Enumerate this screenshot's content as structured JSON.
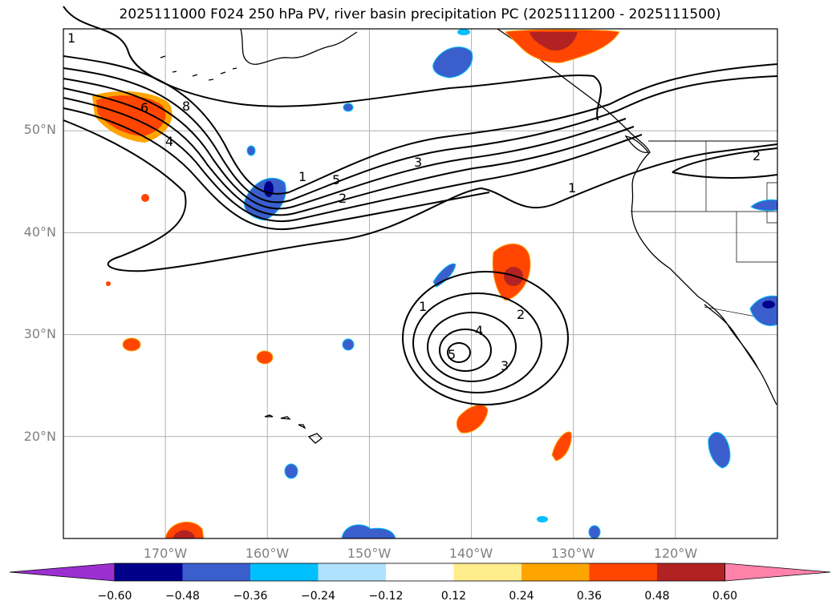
{
  "title": "2025111000 F024 250 hPa PV, river basin precipitation PC (2025111200 - 2025111500)",
  "latitude_labels": [
    "50°N",
    "40°N",
    "30°N",
    "20°N"
  ],
  "longitude_labels": [
    "170°W",
    "160°W",
    "150°W",
    "140°W",
    "130°W",
    "120°W"
  ],
  "contour_labels": {
    "nw_1": "1",
    "nw_6": "6",
    "nw_8": "8",
    "nw_4": "4",
    "jet_1": "1",
    "jet_5": "5",
    "jet_2": "2",
    "jet_3": "3",
    "jet_1b": "1",
    "ne_2": "2",
    "low_1": "1",
    "low_2": "2",
    "low_4": "4",
    "low_3": "3",
    "low_5": "5"
  },
  "colorbar": {
    "ticks": [
      "−0.60",
      "−0.48",
      "−0.36",
      "−0.24",
      "−0.12",
      "0.12",
      "0.24",
      "0.36",
      "0.48",
      "0.60"
    ],
    "colors": [
      "#9b30d0",
      "#00008b",
      "#3a5fcd",
      "#00bfff",
      "#b0e2ff",
      "#ffffff",
      "#ffec8b",
      "#ffa500",
      "#ff4500",
      "#b22222",
      "#ff82ab"
    ]
  },
  "chart_data": {
    "type": "map",
    "projection": "PlateCarree",
    "lon_range": [
      -180,
      -110
    ],
    "lat_range": [
      10,
      60
    ],
    "gridlines": true,
    "contour_field": "250 hPa PV",
    "contour_levels": [
      1,
      2,
      3,
      4,
      5,
      6,
      7,
      8
    ],
    "shaded_field": "river basin precipitation PC",
    "shade_levels": [
      -0.6,
      -0.48,
      -0.36,
      -0.24,
      -0.12,
      0.12,
      0.24,
      0.36,
      0.48,
      0.6
    ],
    "colorbar_extend": "both"
  }
}
